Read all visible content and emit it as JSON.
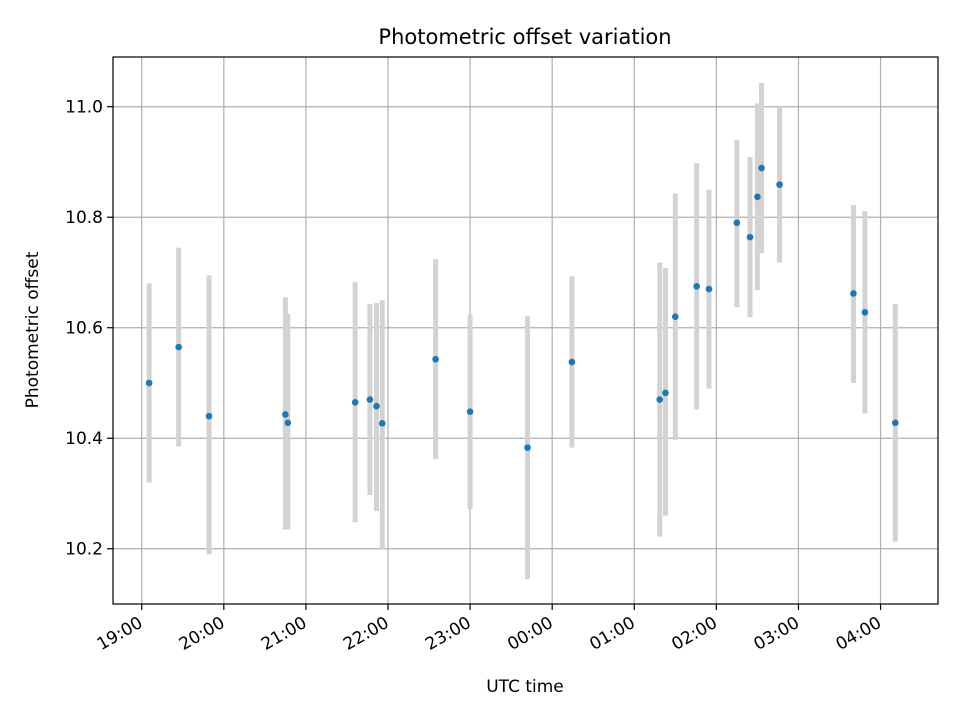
{
  "chart_data": {
    "type": "scatter",
    "title": "Photometric offset variation",
    "xlabel": "UTC time",
    "ylabel": "Photometric offset",
    "x_unit": "hours since 19:00 UTC",
    "xlim": [
      -0.35,
      9.7
    ],
    "ylim": [
      10.1,
      11.09
    ],
    "grid": true,
    "x_ticks": [
      {
        "x": 0,
        "label": "19:00"
      },
      {
        "x": 1,
        "label": "20:00"
      },
      {
        "x": 2,
        "label": "21:00"
      },
      {
        "x": 3,
        "label": "22:00"
      },
      {
        "x": 4,
        "label": "23:00"
      },
      {
        "x": 5,
        "label": "00:00"
      },
      {
        "x": 6,
        "label": "01:00"
      },
      {
        "x": 7,
        "label": "02:00"
      },
      {
        "x": 8,
        "label": "03:00"
      },
      {
        "x": 9,
        "label": "04:00"
      }
    ],
    "y_ticks": [
      {
        "y": 10.2,
        "label": "10.2"
      },
      {
        "y": 10.4,
        "label": "10.4"
      },
      {
        "y": 10.6,
        "label": "10.6"
      },
      {
        "y": 10.8,
        "label": "10.8"
      },
      {
        "y": 11.0,
        "label": "11.0"
      }
    ],
    "marker_color": "#1f77b4",
    "errorbar_color": "#d3d3d3",
    "points": [
      {
        "x": 0.09,
        "y": 10.5,
        "lo": 10.32,
        "hi": 10.68
      },
      {
        "x": 0.45,
        "y": 10.565,
        "lo": 10.385,
        "hi": 10.745
      },
      {
        "x": 0.82,
        "y": 10.44,
        "lo": 10.19,
        "hi": 10.695
      },
      {
        "x": 1.75,
        "y": 10.443,
        "lo": 10.235,
        "hi": 10.655
      },
      {
        "x": 1.78,
        "y": 10.428,
        "lo": 10.235,
        "hi": 10.625
      },
      {
        "x": 2.6,
        "y": 10.465,
        "lo": 10.248,
        "hi": 10.682
      },
      {
        "x": 2.78,
        "y": 10.47,
        "lo": 10.297,
        "hi": 10.643
      },
      {
        "x": 2.86,
        "y": 10.458,
        "lo": 10.268,
        "hi": 10.645
      },
      {
        "x": 2.93,
        "y": 10.427,
        "lo": 10.2,
        "hi": 10.65
      },
      {
        "x": 3.58,
        "y": 10.543,
        "lo": 10.362,
        "hi": 10.724
      },
      {
        "x": 4.0,
        "y": 10.448,
        "lo": 10.272,
        "hi": 10.624
      },
      {
        "x": 4.7,
        "y": 10.383,
        "lo": 10.145,
        "hi": 10.621
      },
      {
        "x": 5.24,
        "y": 10.538,
        "lo": 10.383,
        "hi": 10.693
      },
      {
        "x": 6.31,
        "y": 10.47,
        "lo": 10.222,
        "hi": 10.718
      },
      {
        "x": 6.38,
        "y": 10.482,
        "lo": 10.26,
        "hi": 10.708
      },
      {
        "x": 6.5,
        "y": 10.62,
        "lo": 10.397,
        "hi": 10.843
      },
      {
        "x": 6.76,
        "y": 10.675,
        "lo": 10.452,
        "hi": 10.898
      },
      {
        "x": 6.91,
        "y": 10.67,
        "lo": 10.49,
        "hi": 10.85
      },
      {
        "x": 7.25,
        "y": 10.79,
        "lo": 10.637,
        "hi": 10.94
      },
      {
        "x": 7.41,
        "y": 10.764,
        "lo": 10.619,
        "hi": 10.909
      },
      {
        "x": 7.5,
        "y": 10.837,
        "lo": 10.668,
        "hi": 11.006
      },
      {
        "x": 7.55,
        "y": 10.889,
        "lo": 10.735,
        "hi": 11.043
      },
      {
        "x": 7.77,
        "y": 10.859,
        "lo": 10.718,
        "hi": 11.0
      },
      {
        "x": 8.67,
        "y": 10.662,
        "lo": 10.5,
        "hi": 10.822
      },
      {
        "x": 8.81,
        "y": 10.628,
        "lo": 10.445,
        "hi": 10.811
      },
      {
        "x": 9.18,
        "y": 10.428,
        "lo": 10.213,
        "hi": 10.643
      }
    ]
  }
}
